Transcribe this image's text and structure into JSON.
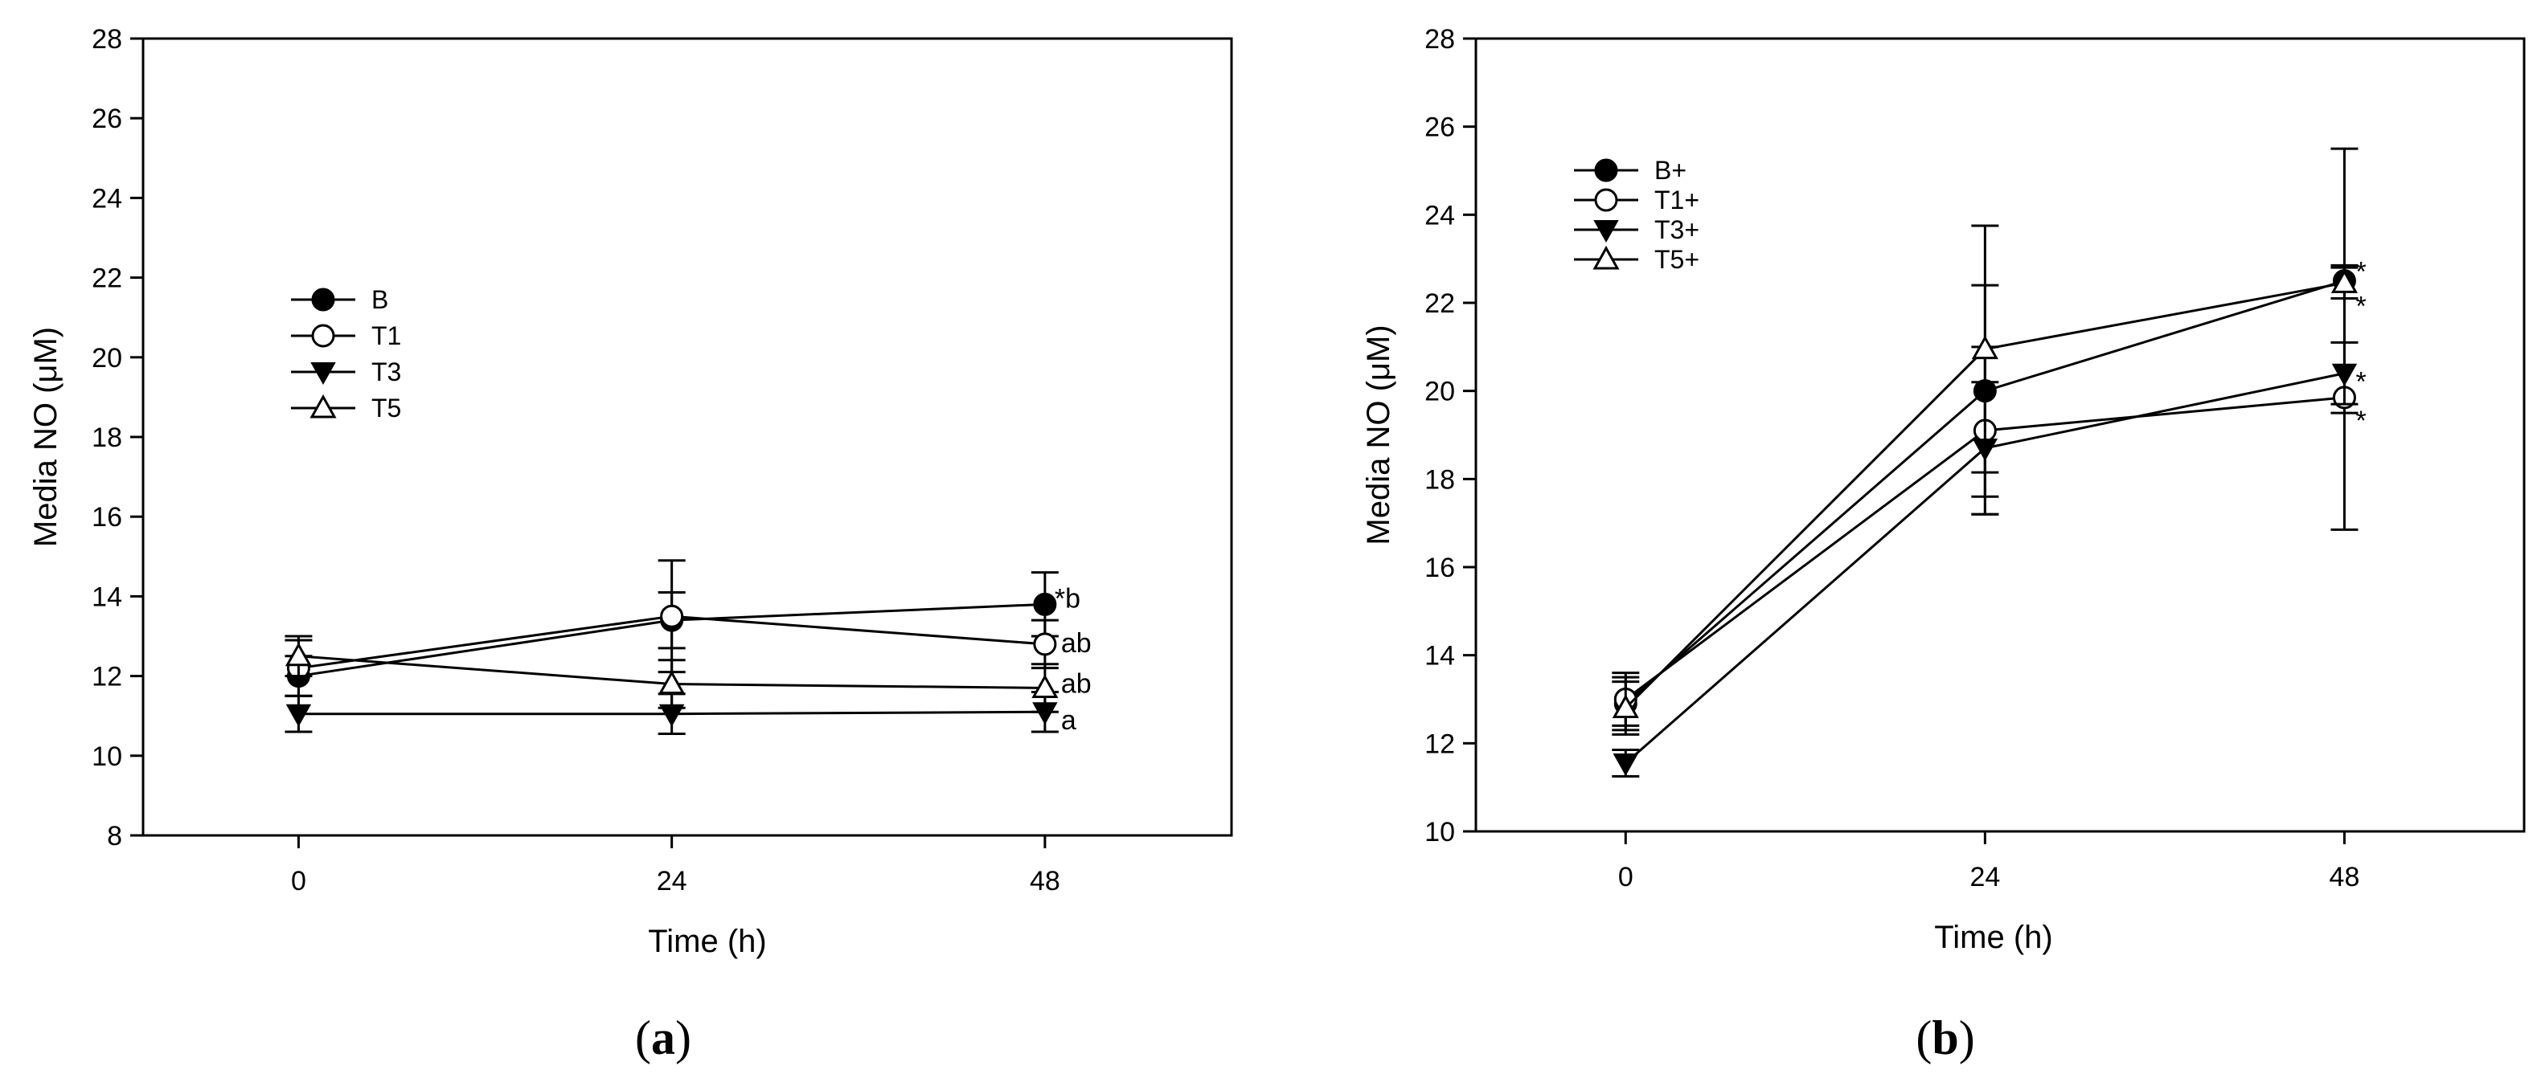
{
  "chart_data": [
    {
      "type": "line",
      "panel_label": "a",
      "xlabel": "Time (h)",
      "ylabel": "Media NO (μM)",
      "x": [
        0,
        24,
        48
      ],
      "xticks": [
        0,
        24,
        48
      ],
      "xlim": [
        -10,
        60
      ],
      "ylim": [
        8,
        28
      ],
      "yticks": [
        8,
        10,
        12,
        14,
        16,
        18,
        20,
        22,
        24,
        26,
        28
      ],
      "grid": false,
      "legend_position": "left",
      "series": [
        {
          "name": "B",
          "marker": "circle-filled",
          "values": [
            12.0,
            13.4,
            13.8
          ],
          "error": [
            0.5,
            0.7,
            0.8
          ],
          "annotation": "*b"
        },
        {
          "name": "T1",
          "marker": "circle-open",
          "values": [
            12.2,
            13.5,
            12.8
          ],
          "error": [
            0.7,
            1.4,
            0.6
          ],
          "annotation": "ab"
        },
        {
          "name": "T3",
          "marker": "triangle-down-filled",
          "values": [
            11.05,
            11.05,
            11.1
          ],
          "error": [
            0.45,
            0.5,
            0.5
          ],
          "annotation": "a"
        },
        {
          "name": "T5",
          "marker": "triangle-up-open",
          "values": [
            12.5,
            11.8,
            11.7
          ],
          "error": [
            0.5,
            0.6,
            0.6
          ],
          "annotation": "ab"
        }
      ]
    },
    {
      "type": "line",
      "panel_label": "b",
      "xlabel": "Time (h)",
      "ylabel": "Media NO (μM)",
      "x": [
        0,
        24,
        48
      ],
      "xticks": [
        0,
        24,
        48
      ],
      "xlim": [
        -10,
        60
      ],
      "ylim": [
        10,
        28
      ],
      "yticks": [
        10,
        12,
        14,
        16,
        18,
        20,
        22,
        24,
        26,
        28
      ],
      "grid": false,
      "legend_position": "top-left",
      "series": [
        {
          "name": "B+",
          "marker": "circle-filled",
          "values": [
            12.9,
            20.0,
            22.5
          ],
          "error": [
            0.6,
            2.4,
            3.0
          ],
          "annotation": "*"
        },
        {
          "name": "T1+",
          "marker": "circle-open",
          "values": [
            13.0,
            19.1,
            19.85
          ],
          "error": [
            0.6,
            1.9,
            3.0
          ],
          "annotation": "*"
        },
        {
          "name": "T3+",
          "marker": "triangle-down-filled",
          "values": [
            11.55,
            18.7,
            20.4
          ],
          "error": [
            0.3,
            1.5,
            0.7
          ],
          "annotation": "*"
        },
        {
          "name": "T5+",
          "marker": "triangle-up-open",
          "values": [
            12.8,
            20.95,
            22.45
          ],
          "error": [
            0.6,
            2.8,
            0.35
          ],
          "annotation": "*"
        }
      ]
    }
  ]
}
